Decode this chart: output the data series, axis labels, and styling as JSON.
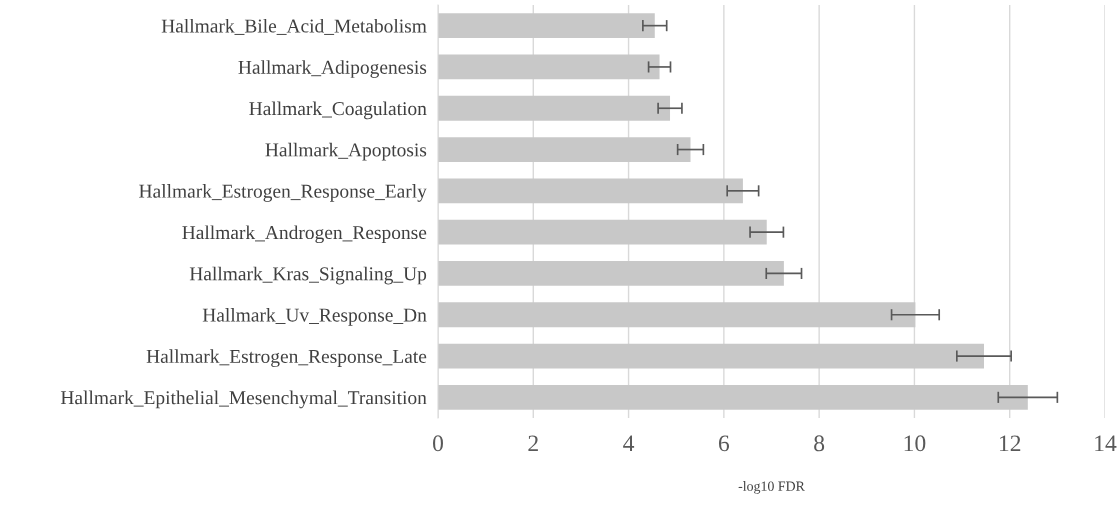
{
  "chart_data": {
    "type": "bar",
    "orientation": "horizontal",
    "xlabel": "-log10 FDR",
    "categories": [
      "Hallmark_Bile_Acid_Metabolism",
      "Hallmark_Adipogenesis",
      "Hallmark_Coagulation",
      "Hallmark_Apoptosis",
      "Hallmark_Estrogen_Response_Early",
      "Hallmark_Androgen_Response",
      "Hallmark_Kras_Signaling_Up",
      "Hallmark_Uv_Response_Dn",
      "Hallmark_Estrogen_Response_Late",
      "Hallmark_Epithelial_Mesenchymal_Transition"
    ],
    "values": [
      4.55,
      4.65,
      4.87,
      5.3,
      6.4,
      6.9,
      7.26,
      10.02,
      11.46,
      12.38
    ],
    "errors": [
      0.25,
      0.23,
      0.25,
      0.27,
      0.33,
      0.35,
      0.37,
      0.5,
      0.57,
      0.62
    ],
    "color": "#c8c8c8",
    "xlim": [
      0,
      14
    ],
    "xticks": [
      0,
      2,
      4,
      6,
      8,
      10,
      12,
      14
    ],
    "grid": "x",
    "legend": false
  }
}
